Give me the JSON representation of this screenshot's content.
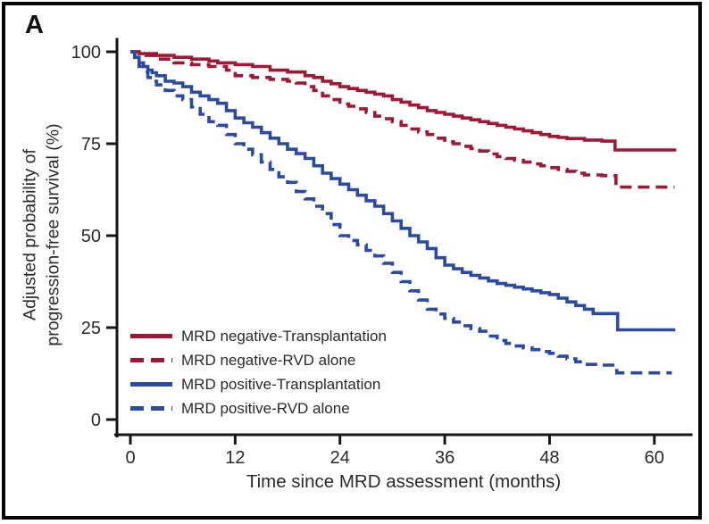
{
  "panel_label": "A",
  "chart_data": {
    "type": "line",
    "subtype": "kaplan-meier-step",
    "title": "",
    "xlabel": "Time since MRD assessment (months)",
    "ylabel_lines": [
      "Adjusted probability of",
      "progression-free survival (%)"
    ],
    "x_ticks": [
      0,
      12,
      24,
      36,
      48,
      60
    ],
    "y_ticks": [
      100,
      75,
      50,
      25,
      0
    ],
    "xlim": [
      0,
      64
    ],
    "ylim": [
      0,
      100
    ],
    "grid": false,
    "legend_position": "inside lower-left",
    "colors": {
      "mrd_negative": "#A21834",
      "mrd_positive": "#2A4AA4"
    },
    "series": [
      {
        "name": "MRD negative-Transplantation",
        "color": "#A21834",
        "dash": "solid",
        "points": [
          [
            0,
            100
          ],
          [
            1,
            99.5
          ],
          [
            3,
            99
          ],
          [
            5,
            98.5
          ],
          [
            7,
            98
          ],
          [
            9,
            97.5
          ],
          [
            10,
            97
          ],
          [
            12,
            96.5
          ],
          [
            14,
            96
          ],
          [
            16,
            95
          ],
          [
            18,
            94.5
          ],
          [
            20,
            93.5
          ],
          [
            21,
            93
          ],
          [
            22,
            92
          ],
          [
            23,
            91.3
          ],
          [
            24,
            90.5
          ],
          [
            25,
            90
          ],
          [
            26,
            89.5
          ],
          [
            27,
            89
          ],
          [
            28,
            88.5
          ],
          [
            29,
            88
          ],
          [
            30,
            87
          ],
          [
            31,
            86.3
          ],
          [
            32,
            85.5
          ],
          [
            33,
            84.8
          ],
          [
            34,
            84
          ],
          [
            35,
            83.5
          ],
          [
            36,
            83
          ],
          [
            37,
            82.5
          ],
          [
            38,
            82
          ],
          [
            39,
            81.5
          ],
          [
            40,
            81
          ],
          [
            41,
            80.5
          ],
          [
            42,
            80
          ],
          [
            43,
            79.5
          ],
          [
            44,
            79
          ],
          [
            45,
            78.5
          ],
          [
            46,
            78
          ],
          [
            47,
            77.5
          ],
          [
            48,
            77
          ],
          [
            49,
            76.7
          ],
          [
            50,
            76.4
          ],
          [
            52,
            76
          ],
          [
            54,
            75.7
          ],
          [
            55.5,
            73.3
          ],
          [
            62.5,
            73.3
          ]
        ]
      },
      {
        "name": "MRD negative-RVD alone",
        "color": "#A21834",
        "dash": "dashed",
        "points": [
          [
            0,
            100
          ],
          [
            1,
            99
          ],
          [
            3,
            98
          ],
          [
            5,
            97
          ],
          [
            7,
            96.5
          ],
          [
            9,
            96
          ],
          [
            11,
            95
          ],
          [
            12,
            93.5
          ],
          [
            14,
            93
          ],
          [
            16,
            92.5
          ],
          [
            18,
            92
          ],
          [
            19,
            91.5
          ],
          [
            20,
            90.5
          ],
          [
            21,
            89.5
          ],
          [
            22,
            88
          ],
          [
            23,
            87
          ],
          [
            24,
            85.8
          ],
          [
            25,
            85.2
          ],
          [
            26,
            84.5
          ],
          [
            27,
            83.5
          ],
          [
            28,
            82.5
          ],
          [
            29,
            81.8
          ],
          [
            30,
            81
          ],
          [
            31,
            80
          ],
          [
            32,
            79
          ],
          [
            33,
            78.2
          ],
          [
            34,
            77.5
          ],
          [
            35,
            76.5
          ],
          [
            36,
            75.5
          ],
          [
            37,
            75
          ],
          [
            38,
            74.3
          ],
          [
            39,
            73.7
          ],
          [
            40,
            73
          ],
          [
            41,
            72.2
          ],
          [
            42,
            71.5
          ],
          [
            43,
            71
          ],
          [
            44,
            70.5
          ],
          [
            45,
            70
          ],
          [
            46,
            69.5
          ],
          [
            47,
            69
          ],
          [
            48,
            68.5
          ],
          [
            49,
            68
          ],
          [
            50,
            67.5
          ],
          [
            51,
            67
          ],
          [
            52,
            66.5
          ],
          [
            54,
            66.3
          ],
          [
            55.6,
            63.2
          ],
          [
            62.3,
            63.2
          ]
        ]
      },
      {
        "name": "MRD positive-Transplantation",
        "color": "#2A4AA4",
        "dash": "solid",
        "points": [
          [
            0,
            100
          ],
          [
            0.5,
            98.5
          ],
          [
            1,
            97
          ],
          [
            1.5,
            96
          ],
          [
            2,
            95
          ],
          [
            2.5,
            94.3
          ],
          [
            3,
            93.5
          ],
          [
            4,
            92
          ],
          [
            5,
            91.5
          ],
          [
            6,
            90.5
          ],
          [
            7,
            89
          ],
          [
            8,
            88
          ],
          [
            9,
            87
          ],
          [
            10,
            86
          ],
          [
            11,
            84
          ],
          [
            12,
            82
          ],
          [
            13,
            80.7
          ],
          [
            14,
            79.5
          ],
          [
            15,
            78
          ],
          [
            16,
            76.5
          ],
          [
            17,
            75
          ],
          [
            18,
            73.5
          ],
          [
            19,
            72.3
          ],
          [
            20,
            71
          ],
          [
            21,
            69
          ],
          [
            22,
            67
          ],
          [
            23,
            65.5
          ],
          [
            24,
            64
          ],
          [
            25,
            62.5
          ],
          [
            26,
            61
          ],
          [
            27,
            59.5
          ],
          [
            28,
            58
          ],
          [
            29,
            56
          ],
          [
            30,
            54
          ],
          [
            31,
            52
          ],
          [
            32,
            50
          ],
          [
            33,
            48.3
          ],
          [
            34,
            46.5
          ],
          [
            35,
            44
          ],
          [
            36,
            42
          ],
          [
            37,
            41
          ],
          [
            38,
            40
          ],
          [
            39,
            39.2
          ],
          [
            40,
            38.5
          ],
          [
            41,
            37.7
          ],
          [
            42,
            37
          ],
          [
            43,
            36.5
          ],
          [
            44,
            36
          ],
          [
            45,
            35.5
          ],
          [
            46,
            35
          ],
          [
            47,
            34.5
          ],
          [
            48,
            34
          ],
          [
            49,
            33
          ],
          [
            50,
            32
          ],
          [
            51,
            31
          ],
          [
            52,
            30
          ],
          [
            53,
            28.8
          ],
          [
            55.8,
            24.4
          ],
          [
            62.4,
            24.4
          ]
        ]
      },
      {
        "name": "MRD positive-RVD alone",
        "color": "#2A4AA4",
        "dash": "dashed",
        "points": [
          [
            0,
            100
          ],
          [
            0.5,
            98
          ],
          [
            1,
            96
          ],
          [
            1.5,
            94.5
          ],
          [
            2,
            93
          ],
          [
            2.5,
            92
          ],
          [
            3,
            91
          ],
          [
            4,
            89.5
          ],
          [
            5,
            88
          ],
          [
            6,
            87
          ],
          [
            7,
            85
          ],
          [
            8,
            83
          ],
          [
            9,
            81
          ],
          [
            10,
            80
          ],
          [
            11,
            77.5
          ],
          [
            12,
            75
          ],
          [
            13,
            73.5
          ],
          [
            14,
            72
          ],
          [
            15,
            70
          ],
          [
            16,
            68
          ],
          [
            17,
            66
          ],
          [
            18,
            64.5
          ],
          [
            19,
            62
          ],
          [
            20,
            60
          ],
          [
            21,
            58
          ],
          [
            22,
            56
          ],
          [
            23,
            53
          ],
          [
            24,
            50
          ],
          [
            25,
            48.7
          ],
          [
            26,
            47.5
          ],
          [
            27,
            46
          ],
          [
            28,
            44.5
          ],
          [
            29,
            42.5
          ],
          [
            30,
            40
          ],
          [
            31,
            37.5
          ],
          [
            32,
            35
          ],
          [
            33,
            32.5
          ],
          [
            34,
            30
          ],
          [
            35,
            28.7
          ],
          [
            36,
            27.5
          ],
          [
            37,
            26.5
          ],
          [
            38,
            25.5
          ],
          [
            39,
            24.7
          ],
          [
            40,
            24
          ],
          [
            41,
            22.7
          ],
          [
            42,
            21.5
          ],
          [
            43,
            20.7
          ],
          [
            44,
            20
          ],
          [
            45,
            19.5
          ],
          [
            46,
            19
          ],
          [
            47,
            18.5
          ],
          [
            48,
            18
          ],
          [
            49,
            17.2
          ],
          [
            50,
            16.5
          ],
          [
            51,
            15.7
          ],
          [
            52,
            15
          ],
          [
            54,
            14.8
          ],
          [
            55.7,
            12.7
          ],
          [
            62,
            12.7
          ]
        ]
      }
    ]
  }
}
